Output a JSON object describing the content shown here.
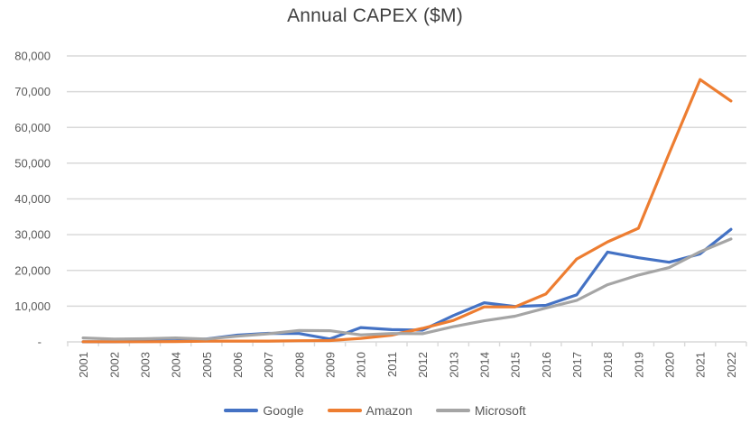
{
  "chart_data": {
    "type": "line",
    "title": "Annual CAPEX ($M)",
    "categories": [
      "2001",
      "2002",
      "2003",
      "2004",
      "2005",
      "2006",
      "2007",
      "2008",
      "2009",
      "2010",
      "2011",
      "2012",
      "2013",
      "2014",
      "2015",
      "2016",
      "2017",
      "2018",
      "2019",
      "2020",
      "2021",
      "2022"
    ],
    "series": [
      {
        "name": "Google",
        "color": "#4472C4",
        "values": [
          13,
          37,
          177,
          319,
          838,
          1903,
          2403,
          2358,
          810,
          4018,
          3438,
          3273,
          7358,
          10959,
          9915,
          10212,
          13184,
          25139,
          23548,
          22281,
          24640,
          31485
        ]
      },
      {
        "name": "Amazon",
        "color": "#ED7D31",
        "values": [
          50,
          39,
          46,
          89,
          204,
          216,
          224,
          333,
          373,
          979,
          1900,
          3785,
          6000,
          9800,
          9800,
          13400,
          23200,
          28000,
          31800,
          52800,
          73400,
          67400
        ]
      },
      {
        "name": "Microsoft",
        "color": "#A5A5A5",
        "values": [
          1103,
          770,
          891,
          1109,
          812,
          1578,
          2264,
          3182,
          3119,
          1977,
          2355,
          2305,
          4257,
          5900,
          7200,
          9500,
          11600,
          16000,
          18700,
          20800,
          25200,
          28800
        ]
      }
    ],
    "ylim": [
      0,
      80000
    ],
    "y_ticks": [
      {
        "value": 0,
        "label": "-"
      },
      {
        "value": 10000,
        "label": "10,000"
      },
      {
        "value": 20000,
        "label": "20,000"
      },
      {
        "value": 30000,
        "label": "30,000"
      },
      {
        "value": 40000,
        "label": "40,000"
      },
      {
        "value": 50000,
        "label": "50,000"
      },
      {
        "value": 60000,
        "label": "60,000"
      },
      {
        "value": 70000,
        "label": "70,000"
      },
      {
        "value": 80000,
        "label": "80,000"
      }
    ],
    "xlabel": "",
    "ylabel": "",
    "legend": [
      "Google",
      "Amazon",
      "Microsoft"
    ],
    "legend_position": "bottom",
    "gridlines": true,
    "colors": {
      "gridline": "#D9D9D9",
      "axis_text": "#595959",
      "title_text": "#404040"
    }
  }
}
